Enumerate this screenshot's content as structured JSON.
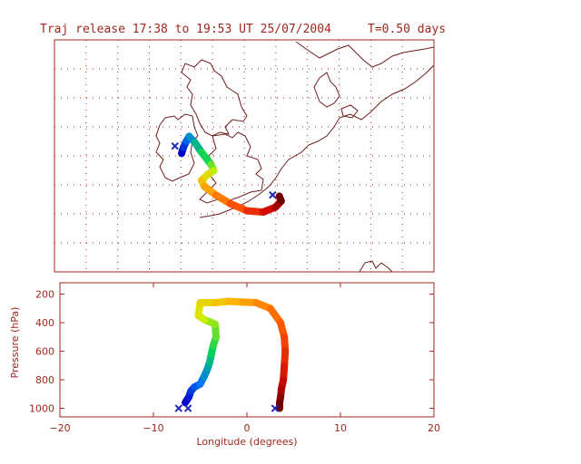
{
  "title": "Traj release 17:38 to 19:53 UT 25/07/2004",
  "duration_label": "T=0.50 days",
  "colors": {
    "axis": "#a0281e",
    "grid": "#a0281e",
    "coast": "#6e1e1e",
    "marker": "#1e28b4",
    "background": "#ffffff"
  },
  "chart_data": [
    {
      "type": "map",
      "panel": "plan-view",
      "grid": true,
      "xlim": [
        -20,
        20
      ],
      "ylim": [
        44,
        63
      ],
      "release_markers": [
        [
          -7.3,
          54.3
        ],
        [
          3.0,
          50.3
        ]
      ],
      "trajectory": [
        [
          -6.6,
          53.7
        ],
        [
          -6.4,
          54.2
        ],
        [
          -6.1,
          54.7
        ],
        [
          -5.8,
          55.1
        ],
        [
          -5.2,
          54.6
        ],
        [
          -4.5,
          53.8
        ],
        [
          -3.5,
          52.8
        ],
        [
          -3.2,
          52.3
        ],
        [
          -3.8,
          52.0
        ],
        [
          -4.5,
          51.5
        ],
        [
          -4.2,
          51.0
        ],
        [
          -3.0,
          50.3
        ],
        [
          -1.5,
          49.6
        ],
        [
          0.3,
          49.0
        ],
        [
          2.0,
          48.9
        ],
        [
          3.3,
          49.3
        ],
        [
          3.9,
          49.8
        ],
        [
          3.7,
          50.2
        ]
      ]
    },
    {
      "type": "line",
      "panel": "vertical-section",
      "xlabel": "Longitude  (degrees)",
      "ylabel": "Pressure  (hPa)",
      "xlim": [
        -20,
        20
      ],
      "ylim": [
        1060,
        120
      ],
      "xticks": [
        -20,
        -10,
        0,
        10,
        20
      ],
      "yticks": [
        200,
        400,
        600,
        800,
        1000
      ],
      "release_markers": [
        [
          -7.3,
          1000
        ],
        [
          -6.3,
          1000
        ],
        [
          3.0,
          1000
        ]
      ],
      "series": [
        {
          "x": [
            -6.6,
            -6.2,
            -6.0,
            -5.6,
            -5.0,
            -4.6,
            -4.2,
            -4.0,
            -3.8,
            -3.6,
            -3.3,
            -3.4,
            -4.5,
            -5.2,
            -5.0,
            -3.5,
            -2.0,
            -0.5,
            1.0,
            2.5,
            3.6,
            4.0,
            4.1,
            4.0,
            3.9,
            3.7,
            3.6,
            3.5,
            3.5
          ],
          "y": [
            960,
            920,
            880,
            850,
            830,
            780,
            720,
            680,
            620,
            560,
            500,
            410,
            380,
            350,
            260,
            260,
            250,
            255,
            260,
            300,
            400,
            500,
            600,
            700,
            800,
            860,
            920,
            960,
            1000
          ]
        }
      ]
    }
  ]
}
